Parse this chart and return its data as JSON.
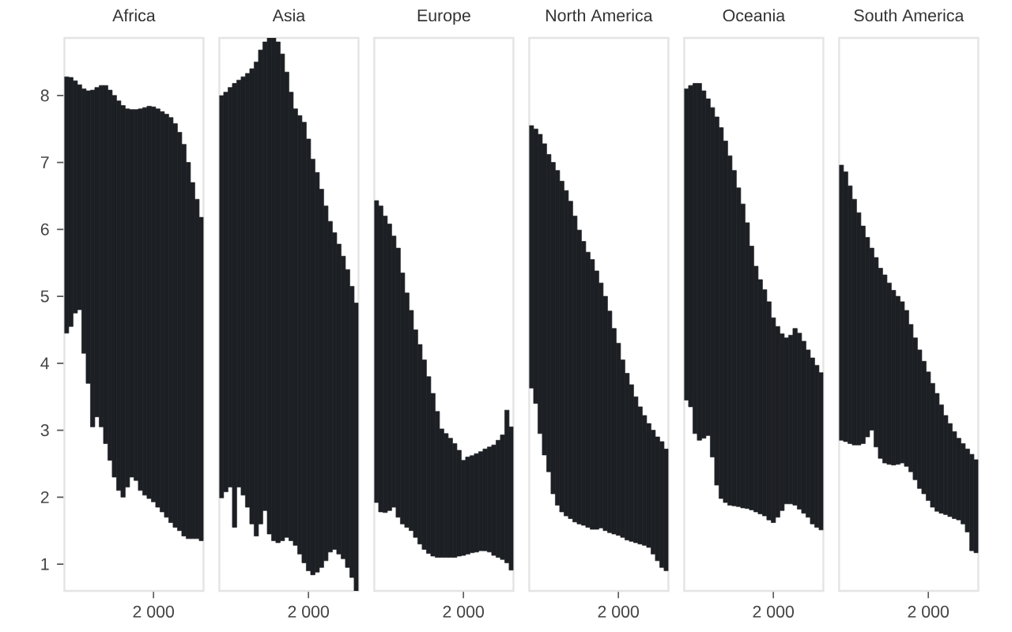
{
  "chart_data": [
    {
      "type": "bar",
      "title": "Africa",
      "color": "#1c1f23",
      "ylim": [
        0.6,
        8.86
      ],
      "yticks": [
        1,
        2,
        3,
        4,
        5,
        6,
        7,
        8
      ],
      "categories": [
        null,
        null,
        null,
        null,
        null,
        null,
        null,
        null,
        null,
        null,
        null,
        null,
        null,
        null,
        null,
        null,
        null,
        null,
        null,
        null,
        "2 000",
        null,
        null,
        null,
        null,
        null,
        null,
        null,
        null,
        null,
        null,
        null
      ],
      "values": [
        3.83,
        3.72,
        3.47,
        3.36,
        3.95,
        4.37,
        5.03,
        4.92,
        5.1,
        5.35,
        5.53,
        5.7,
        5.82,
        5.85,
        5.65,
        5.49,
        5.54,
        5.7,
        5.79,
        5.86,
        5.9,
        5.95,
        5.98,
        6.02,
        6.05,
        6.03,
        5.95,
        5.85,
        5.62,
        5.32,
        5.07,
        4.83
      ],
      "base": [
        4.45,
        4.55,
        4.75,
        4.8,
        4.15,
        3.7,
        3.05,
        3.2,
        3.05,
        2.8,
        2.55,
        2.3,
        2.1,
        2.0,
        2.15,
        2.3,
        2.25,
        2.1,
        2.03,
        1.98,
        1.93,
        1.85,
        1.78,
        1.7,
        1.62,
        1.55,
        1.5,
        1.42,
        1.38,
        1.38,
        1.38,
        1.35
      ]
    },
    {
      "type": "bar",
      "title": "Asia",
      "color": "#1c1f23",
      "ylim": [
        0.6,
        8.86
      ],
      "yticks": [
        1,
        2,
        3,
        4,
        5,
        6,
        7,
        8
      ],
      "tick_labels": "x",
      "categories": [
        null,
        null,
        null,
        null,
        null,
        null,
        null,
        null,
        null,
        null,
        null,
        null,
        null,
        null,
        null,
        null,
        null,
        null,
        null,
        null,
        "2 000",
        null,
        null,
        null,
        null,
        null,
        null,
        null,
        null,
        null,
        null,
        null
      ],
      "values": [
        6.01,
        5.97,
        5.97,
        6.63,
        6.08,
        6.25,
        6.48,
        6.8,
        7.08,
        7.08,
        7.0,
        7.41,
        7.51,
        7.48,
        7.27,
        6.95,
        6.7,
        6.52,
        6.55,
        6.58,
        6.45,
        6.21,
        5.97,
        5.65,
        5.3,
        4.94,
        4.73,
        4.63,
        4.52,
        4.45,
        4.35,
        4.3
      ],
      "base": [
        1.99,
        2.08,
        2.15,
        1.55,
        2.15,
        2.03,
        1.85,
        1.6,
        1.42,
        1.6,
        1.8,
        1.45,
        1.35,
        1.32,
        1.35,
        1.4,
        1.35,
        1.28,
        1.15,
        1.02,
        0.9,
        0.84,
        0.88,
        0.95,
        1.05,
        1.18,
        1.22,
        1.15,
        1.08,
        0.95,
        0.8,
        0.6
      ]
    },
    {
      "type": "bar",
      "title": "Europe",
      "color": "#1c1f23",
      "ylim": [
        0.6,
        8.86
      ],
      "yticks": [
        1,
        2,
        3,
        4,
        5,
        6,
        7,
        8
      ],
      "tick_labels": "x",
      "categories": [
        null,
        null,
        null,
        null,
        null,
        null,
        null,
        null,
        null,
        null,
        null,
        null,
        null,
        null,
        null,
        null,
        null,
        null,
        null,
        null,
        "2 000",
        null,
        null,
        null,
        null,
        null,
        null,
        null,
        null,
        null,
        null,
        null
      ],
      "values": [
        4.51,
        4.57,
        4.43,
        4.28,
        4.05,
        4.02,
        3.75,
        3.5,
        3.29,
        3.1,
        2.98,
        2.83,
        2.64,
        2.43,
        2.18,
        1.92,
        1.85,
        1.78,
        1.7,
        1.58,
        1.42,
        1.45,
        1.45,
        1.47,
        1.48,
        1.52,
        1.57,
        1.65,
        1.75,
        1.86,
        2.28,
        2.14
      ],
      "base": [
        1.92,
        1.78,
        1.77,
        1.8,
        1.85,
        1.7,
        1.6,
        1.55,
        1.5,
        1.4,
        1.3,
        1.22,
        1.16,
        1.12,
        1.1,
        1.1,
        1.1,
        1.1,
        1.1,
        1.12,
        1.13,
        1.15,
        1.17,
        1.18,
        1.2,
        1.2,
        1.18,
        1.13,
        1.1,
        1.07,
        1.02,
        0.91
      ]
    },
    {
      "type": "bar",
      "title": "North America",
      "color": "#1c1f23",
      "ylim": [
        0.6,
        8.86
      ],
      "yticks": [
        1,
        2,
        3,
        4,
        5,
        6,
        7,
        8
      ],
      "tick_labels": "x",
      "categories": [
        null,
        null,
        null,
        null,
        null,
        null,
        null,
        null,
        null,
        null,
        null,
        null,
        null,
        null,
        null,
        null,
        null,
        null,
        null,
        null,
        "2 000",
        null,
        null,
        null,
        null,
        null,
        null,
        null,
        null,
        null,
        null,
        null
      ],
      "values": [
        3.92,
        4.1,
        4.47,
        4.65,
        4.74,
        4.95,
        5.0,
        4.94,
        4.86,
        4.74,
        4.57,
        4.39,
        4.24,
        4.11,
        4.03,
        3.86,
        3.66,
        3.5,
        3.31,
        3.07,
        2.87,
        2.65,
        2.49,
        2.34,
        2.18,
        2.05,
        1.94,
        1.85,
        1.85,
        1.85,
        1.88,
        1.82
      ],
      "base": [
        3.63,
        3.4,
        2.95,
        2.63,
        2.38,
        2.05,
        1.88,
        1.78,
        1.72,
        1.68,
        1.63,
        1.6,
        1.58,
        1.55,
        1.52,
        1.52,
        1.54,
        1.5,
        1.47,
        1.45,
        1.43,
        1.4,
        1.36,
        1.34,
        1.32,
        1.3,
        1.28,
        1.25,
        1.15,
        1.05,
        0.95,
        0.9
      ]
    },
    {
      "type": "bar",
      "title": "Oceania",
      "color": "#1c1f23",
      "ylim": [
        0.6,
        8.86
      ],
      "yticks": [
        1,
        2,
        3,
        4,
        5,
        6,
        7,
        8
      ],
      "tick_labels": "x",
      "categories": [
        null,
        null,
        null,
        null,
        null,
        null,
        null,
        null,
        null,
        null,
        null,
        null,
        null,
        null,
        null,
        null,
        null,
        null,
        null,
        null,
        "2 000",
        null,
        null,
        null,
        null,
        null,
        null,
        null,
        null,
        null,
        null,
        null
      ],
      "values": [
        4.65,
        4.8,
        5.23,
        5.33,
        5.19,
        5.03,
        5.22,
        5.5,
        5.54,
        5.4,
        5.22,
        5.01,
        4.76,
        4.54,
        4.27,
        3.94,
        3.67,
        3.5,
        3.38,
        3.26,
        3.06,
        2.85,
        2.64,
        2.48,
        2.52,
        2.64,
        2.63,
        2.57,
        2.5,
        2.48,
        2.42,
        2.35
      ],
      "base": [
        3.45,
        3.35,
        2.95,
        2.85,
        2.88,
        2.92,
        2.6,
        2.18,
        1.98,
        1.92,
        1.88,
        1.87,
        1.86,
        1.84,
        1.83,
        1.81,
        1.78,
        1.75,
        1.72,
        1.66,
        1.62,
        1.7,
        1.8,
        1.9,
        1.9,
        1.88,
        1.82,
        1.76,
        1.7,
        1.6,
        1.55,
        1.51
      ]
    },
    {
      "type": "bar",
      "title": "South America",
      "color": "#1c1f23",
      "ylim": [
        0.6,
        8.86
      ],
      "yticks": [
        1,
        2,
        3,
        4,
        5,
        6,
        7,
        8
      ],
      "tick_labels": "x",
      "categories": [
        null,
        null,
        null,
        null,
        null,
        null,
        null,
        null,
        null,
        null,
        null,
        null,
        null,
        null,
        null,
        null,
        null,
        null,
        null,
        null,
        "2 000",
        null,
        null,
        null,
        null,
        null,
        null,
        null,
        null,
        null,
        null,
        null
      ],
      "values": [
        4.11,
        4.03,
        3.85,
        3.67,
        3.47,
        3.25,
        2.98,
        2.72,
        2.83,
        2.84,
        2.81,
        2.71,
        2.61,
        2.51,
        2.41,
        2.33,
        2.2,
        2.12,
        2.07,
        1.98,
        1.92,
        1.85,
        1.76,
        1.62,
        1.48,
        1.39,
        1.3,
        1.22,
        1.2,
        1.24,
        1.44,
        1.39
      ],
      "base": [
        2.85,
        2.83,
        2.8,
        2.78,
        2.78,
        2.8,
        2.9,
        3.0,
        2.75,
        2.58,
        2.51,
        2.49,
        2.48,
        2.49,
        2.51,
        2.46,
        2.38,
        2.26,
        2.13,
        2.05,
        1.95,
        1.85,
        1.79,
        1.76,
        1.74,
        1.71,
        1.68,
        1.66,
        1.6,
        1.48,
        1.2,
        1.17
      ]
    }
  ]
}
